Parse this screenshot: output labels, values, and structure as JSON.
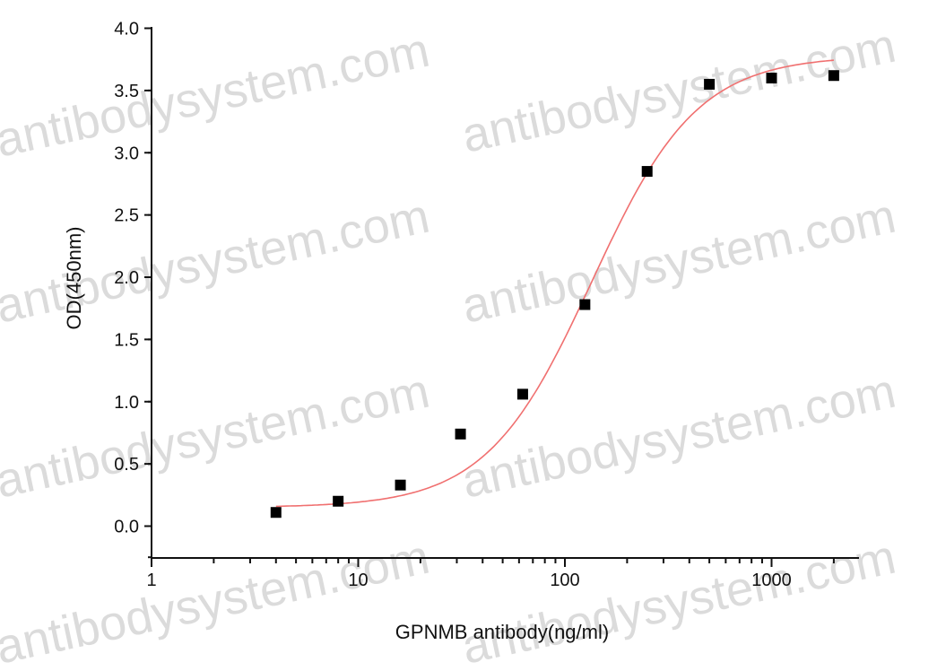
{
  "watermark": "antibodysystem.com",
  "chart_data": {
    "type": "scatter",
    "title": "",
    "xlabel": "GPNMB  antibody(ng/ml)",
    "ylabel": "OD(450nm)",
    "xscale": "log",
    "xlim": [
      1,
      2500
    ],
    "ylim": [
      -0.25,
      4.0
    ],
    "xticks": [
      "1",
      "10",
      "100",
      "1000"
    ],
    "yticks": [
      "0.0",
      "0.5",
      "1.0",
      "1.5",
      "2.0",
      "2.5",
      "3.0",
      "3.5",
      "4.0"
    ],
    "grid": false,
    "marker_color": "#000000",
    "fit_color": "#f07070",
    "points": {
      "x": [
        4,
        8,
        16,
        31.25,
        62.5,
        125,
        250,
        500,
        1000,
        2000
      ],
      "y": [
        0.11,
        0.2,
        0.33,
        0.74,
        1.06,
        1.78,
        2.85,
        3.55,
        3.6,
        3.62
      ]
    },
    "fit": {
      "model": "4PL",
      "bottom": 0.15,
      "top": 3.78,
      "ec50": 135,
      "hill": 1.7
    }
  }
}
